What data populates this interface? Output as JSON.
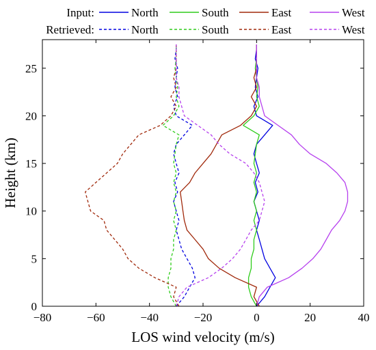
{
  "chart_data": {
    "type": "line",
    "xlabel": "LOS wind velocity (m/s)",
    "ylabel": "Height (km)",
    "xlim": [
      -80,
      40
    ],
    "ylim": [
      0,
      28
    ],
    "xticks": [
      -80,
      -60,
      -40,
      -20,
      0,
      20,
      40
    ],
    "yticks": [
      0,
      5,
      10,
      15,
      20,
      25
    ],
    "grid": false,
    "legend": {
      "placement": "top",
      "rows": [
        {
          "label": "Input:",
          "line_style": "solid"
        },
        {
          "label": "Retrieved:",
          "line_style": "dashed"
        }
      ]
    },
    "series": [
      {
        "name": "North",
        "group": "Input",
        "style": "solid",
        "color": "#0000e0",
        "points": [
          [
            0,
            0
          ],
          [
            3,
            1
          ],
          [
            5,
            2
          ],
          [
            7,
            3
          ],
          [
            5,
            4
          ],
          [
            3,
            5
          ],
          [
            2,
            6
          ],
          [
            1,
            7
          ],
          [
            0,
            8
          ],
          [
            1,
            9
          ],
          [
            0,
            10
          ],
          [
            -1,
            11
          ],
          [
            0.5,
            12
          ],
          [
            -0.5,
            13
          ],
          [
            1,
            14
          ],
          [
            0,
            15
          ],
          [
            -1,
            16
          ],
          [
            0,
            17
          ],
          [
            3,
            18
          ],
          [
            6,
            19
          ],
          [
            0,
            20
          ],
          [
            -1,
            21
          ],
          [
            0.5,
            22
          ],
          [
            -0.5,
            23
          ],
          [
            0,
            24
          ],
          [
            0.5,
            25
          ],
          [
            -0.5,
            26
          ],
          [
            0,
            27
          ],
          [
            0,
            27.5
          ]
        ]
      },
      {
        "name": "South",
        "group": "Input",
        "style": "solid",
        "color": "#2ecc1a",
        "points": [
          [
            0,
            0
          ],
          [
            -2,
            1
          ],
          [
            -3,
            2
          ],
          [
            -3,
            3
          ],
          [
            -2,
            4
          ],
          [
            -2,
            5
          ],
          [
            -1,
            6
          ],
          [
            -1,
            7
          ],
          [
            0,
            8
          ],
          [
            -1,
            9
          ],
          [
            0,
            10
          ],
          [
            -1,
            11
          ],
          [
            0,
            12
          ],
          [
            -1,
            13
          ],
          [
            0,
            14
          ],
          [
            -1,
            15
          ],
          [
            -0.5,
            16
          ],
          [
            0,
            17
          ],
          [
            1,
            18
          ],
          [
            -5,
            19
          ],
          [
            -1,
            20
          ],
          [
            1,
            21
          ],
          [
            0,
            22
          ],
          [
            0.5,
            23
          ],
          [
            0,
            24
          ],
          [
            -0.5,
            25
          ],
          [
            0,
            26
          ],
          [
            0,
            27
          ],
          [
            0,
            27.5
          ]
        ]
      },
      {
        "name": "East",
        "group": "Input",
        "style": "solid",
        "color": "#a0280a",
        "points": [
          [
            1,
            0
          ],
          [
            -1,
            1
          ],
          [
            0,
            2
          ],
          [
            -8,
            3
          ],
          [
            -14,
            4
          ],
          [
            -18,
            5
          ],
          [
            -20,
            6
          ],
          [
            -23,
            7
          ],
          [
            -26,
            8
          ],
          [
            -27,
            9
          ],
          [
            -27.5,
            10
          ],
          [
            -28,
            11
          ],
          [
            -28.5,
            12
          ],
          [
            -25,
            13
          ],
          [
            -23,
            14
          ],
          [
            -20,
            15
          ],
          [
            -17,
            16
          ],
          [
            -15,
            17
          ],
          [
            -13,
            18
          ],
          [
            -6,
            19
          ],
          [
            -2,
            20
          ],
          [
            0,
            21
          ],
          [
            -2,
            22
          ],
          [
            0,
            23
          ],
          [
            -1,
            24
          ],
          [
            0,
            25
          ],
          [
            0,
            26
          ],
          [
            0,
            27
          ],
          [
            0,
            27.5
          ]
        ]
      },
      {
        "name": "West",
        "group": "Input",
        "style": "solid",
        "color": "#b640ee",
        "points": [
          [
            0,
            0
          ],
          [
            1,
            1
          ],
          [
            4,
            2
          ],
          [
            12,
            3
          ],
          [
            17,
            4
          ],
          [
            21,
            5
          ],
          [
            24,
            6
          ],
          [
            26,
            7
          ],
          [
            28,
            8
          ],
          [
            31,
            9
          ],
          [
            33,
            10
          ],
          [
            34,
            11
          ],
          [
            34,
            12
          ],
          [
            33,
            13
          ],
          [
            30,
            14
          ],
          [
            26,
            15
          ],
          [
            20,
            16
          ],
          [
            16,
            17
          ],
          [
            13,
            18
          ],
          [
            8,
            19
          ],
          [
            3,
            20
          ],
          [
            2,
            21
          ],
          [
            1,
            22
          ],
          [
            1,
            23
          ],
          [
            0,
            24
          ],
          [
            0,
            25
          ],
          [
            0,
            26
          ],
          [
            0,
            27
          ],
          [
            0,
            27.5
          ]
        ]
      },
      {
        "name": "North",
        "group": "Retrieved",
        "style": "dashed",
        "color": "#0000e0",
        "points": [
          [
            -30,
            0
          ],
          [
            -27,
            1
          ],
          [
            -25,
            2
          ],
          [
            -23,
            3
          ],
          [
            -24,
            4
          ],
          [
            -26,
            5
          ],
          [
            -28,
            6
          ],
          [
            -29,
            7
          ],
          [
            -30,
            8
          ],
          [
            -29,
            9
          ],
          [
            -30,
            10
          ],
          [
            -31,
            11
          ],
          [
            -29.5,
            12
          ],
          [
            -30.5,
            13
          ],
          [
            -29,
            14
          ],
          [
            -30,
            15
          ],
          [
            -31,
            16
          ],
          [
            -30,
            17
          ],
          [
            -27,
            18
          ],
          [
            -24,
            19
          ],
          [
            -30,
            20
          ],
          [
            -31,
            21
          ],
          [
            -29.5,
            22
          ],
          [
            -30.5,
            23
          ],
          [
            -30,
            24
          ],
          [
            -29.5,
            25
          ],
          [
            -30.5,
            26
          ],
          [
            -30,
            27
          ],
          [
            -30,
            27.5
          ]
        ]
      },
      {
        "name": "South",
        "group": "Retrieved",
        "style": "dashed",
        "color": "#2ecc1a",
        "points": [
          [
            -30,
            0
          ],
          [
            -32,
            1
          ],
          [
            -33,
            2
          ],
          [
            -33,
            3
          ],
          [
            -32,
            4
          ],
          [
            -32,
            5
          ],
          [
            -31,
            6
          ],
          [
            -31,
            7
          ],
          [
            -30,
            8
          ],
          [
            -31,
            9
          ],
          [
            -30,
            10
          ],
          [
            -31,
            11
          ],
          [
            -30,
            12
          ],
          [
            -31,
            13
          ],
          [
            -30,
            14
          ],
          [
            -31,
            15
          ],
          [
            -30.5,
            16
          ],
          [
            -30,
            17
          ],
          [
            -29,
            18
          ],
          [
            -35,
            19
          ],
          [
            -31,
            20
          ],
          [
            -29,
            21
          ],
          [
            -30,
            22
          ],
          [
            -29.5,
            23
          ],
          [
            -30,
            24
          ],
          [
            -30.5,
            25
          ],
          [
            -30,
            26
          ],
          [
            -30,
            27
          ],
          [
            -30,
            27.5
          ]
        ]
      },
      {
        "name": "East",
        "group": "Retrieved",
        "style": "dashed",
        "color": "#a0280a",
        "points": [
          [
            -29,
            0
          ],
          [
            -31,
            1
          ],
          [
            -30,
            2
          ],
          [
            -38,
            3
          ],
          [
            -44,
            4
          ],
          [
            -48,
            5
          ],
          [
            -50,
            6
          ],
          [
            -53,
            7
          ],
          [
            -56,
            8
          ],
          [
            -57,
            9
          ],
          [
            -62,
            10
          ],
          [
            -63,
            11
          ],
          [
            -64,
            12
          ],
          [
            -60,
            13
          ],
          [
            -56,
            14
          ],
          [
            -52,
            15
          ],
          [
            -50,
            16
          ],
          [
            -47,
            17
          ],
          [
            -44,
            18
          ],
          [
            -36,
            19
          ],
          [
            -32,
            20
          ],
          [
            -30,
            21
          ],
          [
            -32,
            22
          ],
          [
            -30,
            23
          ],
          [
            -31,
            24
          ],
          [
            -30,
            25
          ],
          [
            -30,
            26
          ],
          [
            -30,
            27
          ],
          [
            -30,
            27.5
          ]
        ]
      },
      {
        "name": "West",
        "group": "Retrieved",
        "style": "dashed",
        "color": "#b640ee",
        "points": [
          [
            -30,
            0
          ],
          [
            -29,
            1
          ],
          [
            -26,
            2
          ],
          [
            -18,
            3
          ],
          [
            -13,
            4
          ],
          [
            -9,
            5
          ],
          [
            -6,
            6
          ],
          [
            -4,
            7
          ],
          [
            -2,
            8
          ],
          [
            1,
            9
          ],
          [
            2,
            10
          ],
          [
            3,
            11
          ],
          [
            2,
            12
          ],
          [
            1,
            13
          ],
          [
            -1,
            14
          ],
          [
            -4,
            15
          ],
          [
            -10,
            16
          ],
          [
            -14,
            17
          ],
          [
            -17,
            18
          ],
          [
            -22,
            19
          ],
          [
            -27,
            20
          ],
          [
            -28,
            21
          ],
          [
            -29,
            22
          ],
          [
            -29,
            23
          ],
          [
            -30,
            24
          ],
          [
            -30,
            25
          ],
          [
            -30,
            26
          ],
          [
            -30,
            27
          ],
          [
            -30,
            27.5
          ]
        ]
      }
    ]
  }
}
